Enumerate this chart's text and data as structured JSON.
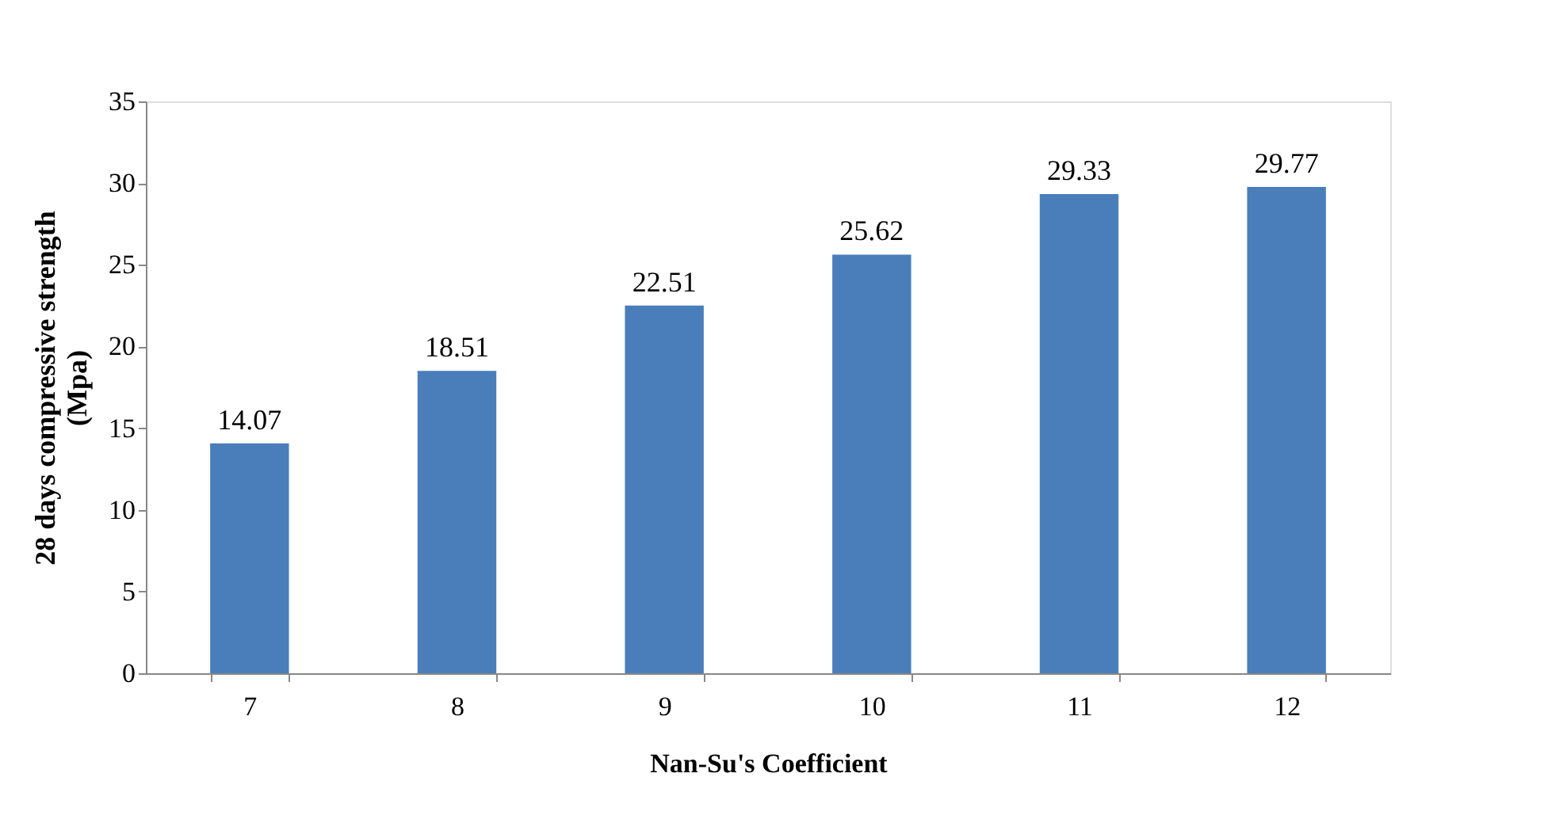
{
  "chart_data": {
    "type": "bar",
    "xlabel": "Nan-Su's Coefficient",
    "ylabel": "28  days compressive strength\n(Mpa)",
    "categories": [
      "7",
      "8",
      "9",
      "10",
      "11",
      "12"
    ],
    "values": [
      14.07,
      18.51,
      22.51,
      25.62,
      29.33,
      29.77
    ],
    "color": "#4a7ebb",
    "ylim": [
      0,
      35
    ],
    "yticks": [
      0,
      5,
      10,
      15,
      20,
      25,
      30,
      35
    ],
    "grid": false,
    "data_labels": true
  }
}
